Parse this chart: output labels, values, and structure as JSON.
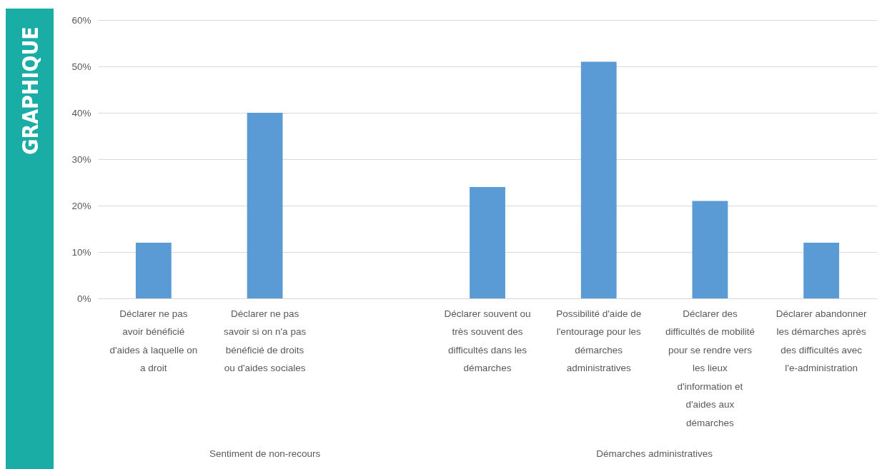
{
  "chart_data": {
    "type": "bar",
    "title": "GRAPHIQUE",
    "categories": [
      "Déclarer ne pas avoir bénéficié d'aides à laquelle on a droit",
      "Déclarer ne pas savoir si on n'a pas bénéficié de droits ou d'aides sociales",
      null,
      "Déclarer souvent ou très souvent des difficultés dans les démarches",
      "Possibilité d'aide de l'entourage pour les démarches administratives",
      "Déclarer des difficultés de mobilité pour se rendre vers les lieux d'information et d'aides aux démarches",
      "Déclarer abandonner les démarches après des difficultés avec l'e-administration"
    ],
    "values": [
      12,
      40,
      null,
      24,
      51,
      21,
      12
    ],
    "color": "#5b9bd5",
    "ylim": [
      0,
      60
    ],
    "yticks": [
      {
        "value": 0,
        "label": "0%"
      },
      {
        "value": 10,
        "label": "10%"
      },
      {
        "value": 20,
        "label": "20%"
      },
      {
        "value": 30,
        "label": "30%"
      },
      {
        "value": 40,
        "label": "40%"
      },
      {
        "value": 50,
        "label": "50%"
      },
      {
        "value": 60,
        "label": "60%"
      }
    ],
    "grid": "y",
    "annotations": [
      "Sentiment de non-recours",
      "Démarches administratives"
    ]
  }
}
